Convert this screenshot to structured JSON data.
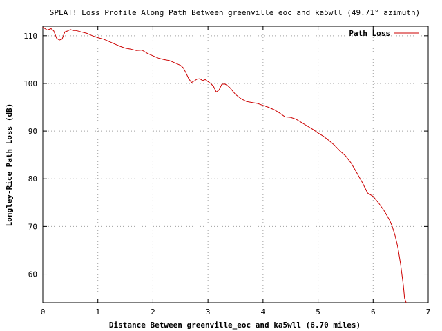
{
  "chart_data": {
    "type": "line",
    "title": "SPLAT! Loss Profile Along Path Between greenville_eoc and ka5wll (49.71° azimuth)",
    "xlabel": "Distance Between greenville_eoc and ka5wll (6.70 miles)",
    "ylabel": "Longley-Rice Path Loss (dB)",
    "xlim": [
      0,
      7
    ],
    "ylim": [
      54,
      112
    ],
    "xticks": [
      "0",
      "1",
      "2",
      "3",
      "4",
      "5",
      "6",
      "7"
    ],
    "yticks": [
      "60",
      "70",
      "80",
      "90",
      "100",
      "110"
    ],
    "xtick_values": [
      0,
      1,
      2,
      3,
      4,
      5,
      6,
      7
    ],
    "ytick_values": [
      60,
      70,
      80,
      90,
      100,
      110
    ],
    "grid": true,
    "legend_position": "top-right",
    "series": [
      {
        "name": "Path Loss",
        "color": "#cc0000",
        "x": [
          0.0,
          0.08,
          0.15,
          0.2,
          0.25,
          0.3,
          0.35,
          0.4,
          0.45,
          0.5,
          0.55,
          0.6,
          0.7,
          0.8,
          0.9,
          1.0,
          1.1,
          1.2,
          1.3,
          1.4,
          1.5,
          1.6,
          1.7,
          1.8,
          1.9,
          2.0,
          2.1,
          2.2,
          2.3,
          2.4,
          2.5,
          2.55,
          2.6,
          2.65,
          2.7,
          2.75,
          2.8,
          2.85,
          2.9,
          2.95,
          3.0,
          3.05,
          3.1,
          3.15,
          3.2,
          3.25,
          3.3,
          3.35,
          3.4,
          3.5,
          3.6,
          3.7,
          3.8,
          3.9,
          4.0,
          4.1,
          4.2,
          4.3,
          4.4,
          4.5,
          4.6,
          4.7,
          4.8,
          4.9,
          5.0,
          5.1,
          5.2,
          5.3,
          5.4,
          5.5,
          5.6,
          5.7,
          5.8,
          5.9,
          6.0,
          6.1,
          6.2,
          6.3,
          6.35,
          6.4,
          6.45,
          6.5,
          6.55,
          6.57,
          6.6
        ],
        "y": [
          111.8,
          111.2,
          111.5,
          111.0,
          109.5,
          109.1,
          109.3,
          110.8,
          111.0,
          111.3,
          111.1,
          111.1,
          110.8,
          110.5,
          110.0,
          109.6,
          109.3,
          108.8,
          108.3,
          107.8,
          107.4,
          107.2,
          106.9,
          107.0,
          106.3,
          105.8,
          105.3,
          105.0,
          104.8,
          104.3,
          103.8,
          103.3,
          102.2,
          101.0,
          100.2,
          100.5,
          100.9,
          101.0,
          100.6,
          100.8,
          100.4,
          100.0,
          99.4,
          98.2,
          98.6,
          99.8,
          99.9,
          99.6,
          99.1,
          97.7,
          96.8,
          96.2,
          96.0,
          95.8,
          95.4,
          95.0,
          94.5,
          93.8,
          93.0,
          92.9,
          92.5,
          91.8,
          91.1,
          90.4,
          89.6,
          88.9,
          88.0,
          87.0,
          85.8,
          84.8,
          83.3,
          81.3,
          79.3,
          77.0,
          76.3,
          74.9,
          73.3,
          71.3,
          69.9,
          68.0,
          65.5,
          62.0,
          57.5,
          55.0,
          54.0
        ]
      }
    ]
  }
}
